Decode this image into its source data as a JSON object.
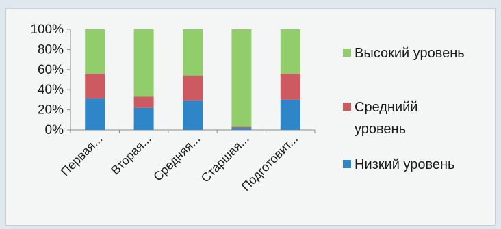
{
  "chart_data": {
    "type": "bar",
    "stacked": true,
    "percent": true,
    "categories": [
      "Первая...",
      "Вторая...",
      "Средняя...",
      "Старшая...",
      "Подготовит..."
    ],
    "series": [
      {
        "name": "Низкий уровень",
        "values": [
          31,
          22,
          29,
          2,
          30
        ],
        "color": "#2e86c8"
      },
      {
        "name": "Среднийй уровень",
        "values": [
          25,
          11,
          25,
          1,
          26
        ],
        "color": "#cc5a60"
      },
      {
        "name": "Высокий уровень",
        "values": [
          44,
          67,
          46,
          97,
          44
        ],
        "color": "#92cd6c"
      }
    ],
    "legend_order": [
      "Высокий уровень",
      "Среднийй уровень",
      "Низкий уровень"
    ],
    "legend_lines": [
      [
        "Высокий уровень"
      ],
      [
        "Среднийй",
        "уровень"
      ],
      [
        "Низкий уровень"
      ]
    ],
    "yticks": [
      "0%",
      "20%",
      "40%",
      "60%",
      "80%",
      "100%"
    ],
    "ylim": [
      0,
      100
    ],
    "grid": false,
    "legend_position": "right"
  }
}
